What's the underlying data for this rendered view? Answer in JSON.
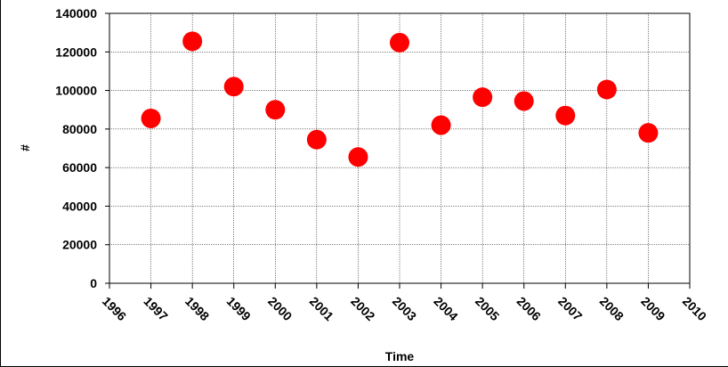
{
  "chart_data": {
    "type": "scatter",
    "title": "",
    "xlabel": "Time",
    "ylabel": "#",
    "x_ticks": [
      "1996",
      "1997",
      "1998",
      "1999",
      "2000",
      "2001",
      "2002",
      "2003",
      "2004",
      "2005",
      "2006",
      "2007",
      "2008",
      "2009",
      "2010"
    ],
    "y_ticks": [
      "0",
      "20000",
      "40000",
      "60000",
      "80000",
      "100000",
      "120000",
      "140000"
    ],
    "xlim": [
      1996,
      2010
    ],
    "ylim": [
      0,
      140000
    ],
    "grid": true,
    "legend": "none",
    "marker_color": "#ff0000",
    "series": [
      {
        "x": [
          1997,
          1998,
          1999,
          2000,
          2001,
          2002,
          2003,
          2004,
          2005,
          2006,
          2007,
          2008,
          2009
        ],
        "y": [
          85500,
          125500,
          102000,
          90000,
          74500,
          65500,
          124800,
          82000,
          96500,
          94500,
          87000,
          100500,
          78000
        ]
      }
    ]
  }
}
